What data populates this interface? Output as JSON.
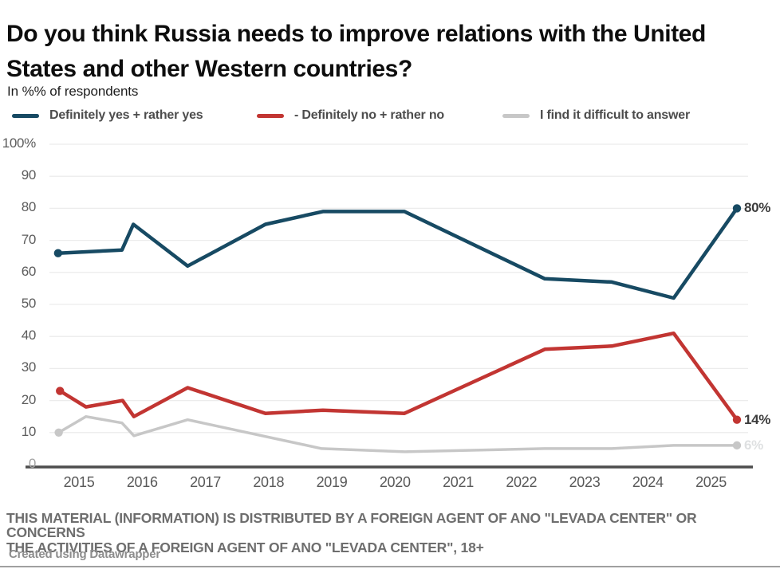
{
  "chart_data": {
    "type": "line",
    "title": "Do you think Russia needs to improve relations with the United States and other Western countries?",
    "subtitle": "In %% of respondents",
    "xlabel": "",
    "ylabel": "",
    "ylim": [
      0,
      100
    ],
    "grid": true,
    "legend_position": "top",
    "x_ticks": [
      "2015",
      "2016",
      "2017",
      "2018",
      "2019",
      "2020",
      "2021",
      "2022",
      "2023",
      "2024",
      "2025"
    ],
    "y_tick_labels": [
      "100%",
      "90",
      "80",
      "70",
      "60",
      "50",
      "40",
      "30",
      "20",
      "10",
      "0"
    ],
    "y_tick_values": [
      100,
      90,
      80,
      70,
      60,
      50,
      40,
      30,
      20,
      10,
      0
    ],
    "series": [
      {
        "name": "Definitely yes + rather yes",
        "color": "#174A63",
        "line_width": 4.5,
        "end_label": "80%",
        "end_label_faint": false,
        "points": [
          [
            2014.67,
            66
          ],
          [
            2015.68,
            67
          ],
          [
            2015.86,
            75
          ],
          [
            2016.72,
            62
          ],
          [
            2017.95,
            75
          ],
          [
            2018.86,
            79
          ],
          [
            2020.15,
            79
          ],
          [
            2022.37,
            58
          ],
          [
            2023.43,
            57
          ],
          [
            2024.41,
            52
          ],
          [
            2025.41,
            80
          ]
        ]
      },
      {
        "name": "- Definitely no + rather no",
        "color": "#C23532",
        "line_width": 4.5,
        "end_label": "14%",
        "end_label_faint": false,
        "points": [
          [
            2014.7,
            23
          ],
          [
            2015.11,
            18
          ],
          [
            2015.69,
            20
          ],
          [
            2015.87,
            15
          ],
          [
            2016.72,
            24
          ],
          [
            2017.95,
            16
          ],
          [
            2018.86,
            17
          ],
          [
            2020.15,
            16
          ],
          [
            2022.37,
            36
          ],
          [
            2023.43,
            37
          ],
          [
            2024.41,
            41
          ],
          [
            2025.41,
            14
          ]
        ]
      },
      {
        "name": "I find it difficult to answer",
        "color": "#C7C7C7",
        "line_width": 3.5,
        "end_label": "6%",
        "end_label_faint": true,
        "points": [
          [
            2014.68,
            10
          ],
          [
            2015.11,
            15
          ],
          [
            2015.68,
            13
          ],
          [
            2015.87,
            9
          ],
          [
            2016.72,
            14
          ],
          [
            2018.84,
            5
          ],
          [
            2020.15,
            4
          ],
          [
            2022.37,
            5
          ],
          [
            2023.43,
            5
          ],
          [
            2024.41,
            6
          ],
          [
            2025.41,
            6
          ]
        ]
      }
    ]
  },
  "footer": {
    "disclaimer_line1": "THIS MATERIAL (INFORMATION) IS DISTRIBUTED BY A FOREIGN AGENT OF ANO \"LEVADA CENTER\" OR CONCERNS",
    "disclaimer_line2": "THE ACTIVITIES OF A FOREIGN AGENT OF ANO \"LEVADA CENTER\", 18+",
    "credit": "Created using Datawrapper"
  }
}
